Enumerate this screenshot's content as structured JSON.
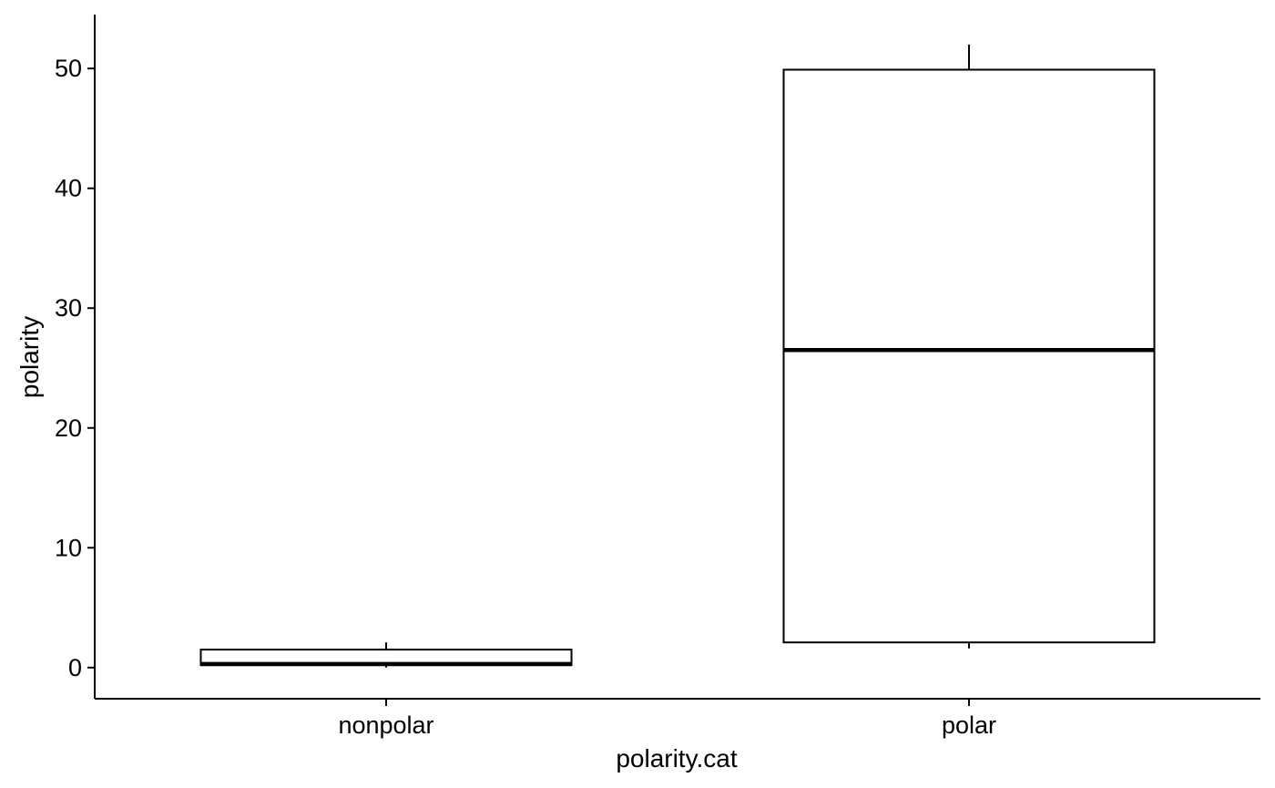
{
  "chart_data": {
    "type": "boxplot",
    "xlabel": "polarity.cat",
    "ylabel": "polarity",
    "ylim": [
      -2.6,
      54.5
    ],
    "y_ticks": [
      0,
      10,
      20,
      30,
      40,
      50
    ],
    "categories": [
      "nonpolar",
      "polar"
    ],
    "boxes": [
      {
        "category": "nonpolar",
        "whisker_low": 0.0,
        "q1": 0.2,
        "median": 0.3,
        "q3": 1.5,
        "whisker_high": 2.1
      },
      {
        "category": "polar",
        "whisker_low": 1.6,
        "q1": 2.1,
        "median": 26.5,
        "q3": 49.9,
        "whisker_high": 52.0
      }
    ],
    "grid": false,
    "legend": "none",
    "colors": {
      "box_fill": "#ffffff",
      "box_stroke": "#000000",
      "axis": "#000000"
    }
  }
}
